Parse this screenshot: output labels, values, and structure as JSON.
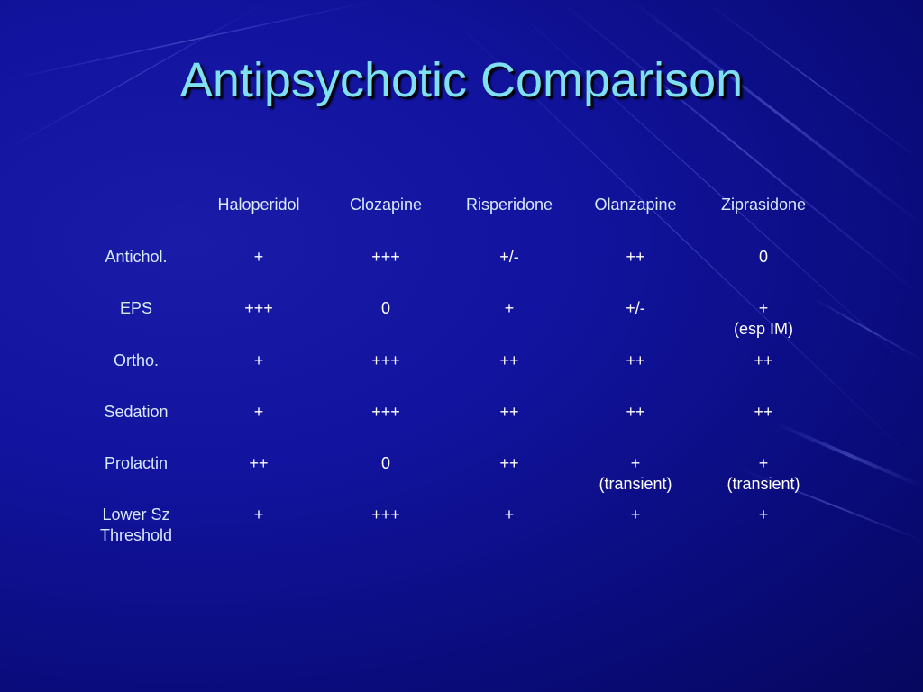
{
  "slide": {
    "title": "Antipsychotic Comparison"
  },
  "table": {
    "columns": [
      "Haloperidol",
      "Clozapine",
      "Risperidone",
      "Olanzapine",
      "Ziprasidone"
    ],
    "rows": [
      {
        "label": [
          "Antichol."
        ],
        "cells": [
          [
            "+"
          ],
          [
            "+++"
          ],
          [
            "+/-"
          ],
          [
            "++"
          ],
          [
            "0"
          ]
        ]
      },
      {
        "label": [
          "EPS"
        ],
        "cells": [
          [
            "+++"
          ],
          [
            "0"
          ],
          [
            "+"
          ],
          [
            "+/-"
          ],
          [
            "+",
            "(esp IM)"
          ]
        ]
      },
      {
        "label": [
          "Ortho."
        ],
        "cells": [
          [
            "+"
          ],
          [
            "+++"
          ],
          [
            "++"
          ],
          [
            "++"
          ],
          [
            "++"
          ]
        ]
      },
      {
        "label": [
          "Sedation"
        ],
        "cells": [
          [
            "+"
          ],
          [
            "+++"
          ],
          [
            "++"
          ],
          [
            "++"
          ],
          [
            "++"
          ]
        ]
      },
      {
        "label": [
          "Prolactin"
        ],
        "cells": [
          [
            "++"
          ],
          [
            "0"
          ],
          [
            "++"
          ],
          [
            "+",
            "(transient)"
          ],
          [
            "+",
            "(transient)"
          ]
        ]
      },
      {
        "label": [
          "Lower Sz",
          "Threshold"
        ],
        "cells": [
          [
            "+"
          ],
          [
            "+++"
          ],
          [
            "+"
          ],
          [
            "+"
          ],
          [
            "+"
          ]
        ]
      }
    ]
  }
}
